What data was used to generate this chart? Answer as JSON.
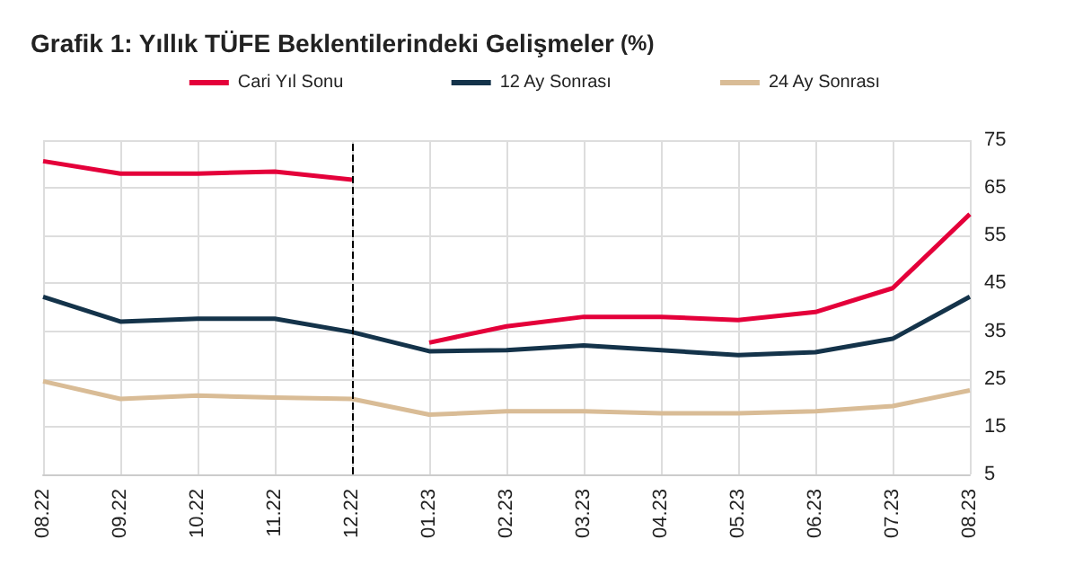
{
  "chart_data": {
    "type": "line",
    "title": "Grafik 1: Yıllık TÜFE Beklentilerindeki Gelişmeler (%)",
    "categories": [
      "08.22",
      "09.22",
      "10.22",
      "11.22",
      "12.22",
      "01.23",
      "02.23",
      "03.23",
      "04.23",
      "05.23",
      "06.23",
      "07.23",
      "08.23"
    ],
    "series": [
      {
        "name": "Cari Yıl Sonu",
        "color": "#e4003a",
        "values": [
          70.6,
          68,
          68,
          68.4,
          66.7,
          null,
          null,
          null,
          null,
          null,
          null,
          null,
          null
        ]
      },
      {
        "name": "12 Ay Sonrası",
        "color": "#14334a",
        "values": [
          42.2,
          37,
          37.6,
          37.6,
          34.8,
          30.8,
          31,
          32,
          31,
          30,
          30.6,
          33.4,
          42.2
        ]
      },
      {
        "name": "24 Ay Sonrası",
        "color": "#d9bc96",
        "values": [
          24.5,
          20.8,
          21.5,
          21.1,
          20.8,
          17.5,
          18.2,
          18.2,
          17.8,
          17.8,
          18.2,
          19.3,
          22.6
        ]
      },
      {
        "color": "#e4003a",
        "values": [
          null,
          null,
          null,
          null,
          null,
          32.6,
          36,
          38,
          38,
          37.3,
          39,
          44,
          59.5
        ]
      }
    ],
    "ylim": [
      5,
      75
    ],
    "yticks": [
      5,
      15,
      25,
      35,
      45,
      55,
      65,
      75
    ],
    "grid": true,
    "legend": "top",
    "marker": "none",
    "line_style": "solid",
    "ref_lines": [
      {
        "axis": "x",
        "value": "12.22",
        "color": "#000000",
        "line_style": "dashed"
      }
    ]
  }
}
